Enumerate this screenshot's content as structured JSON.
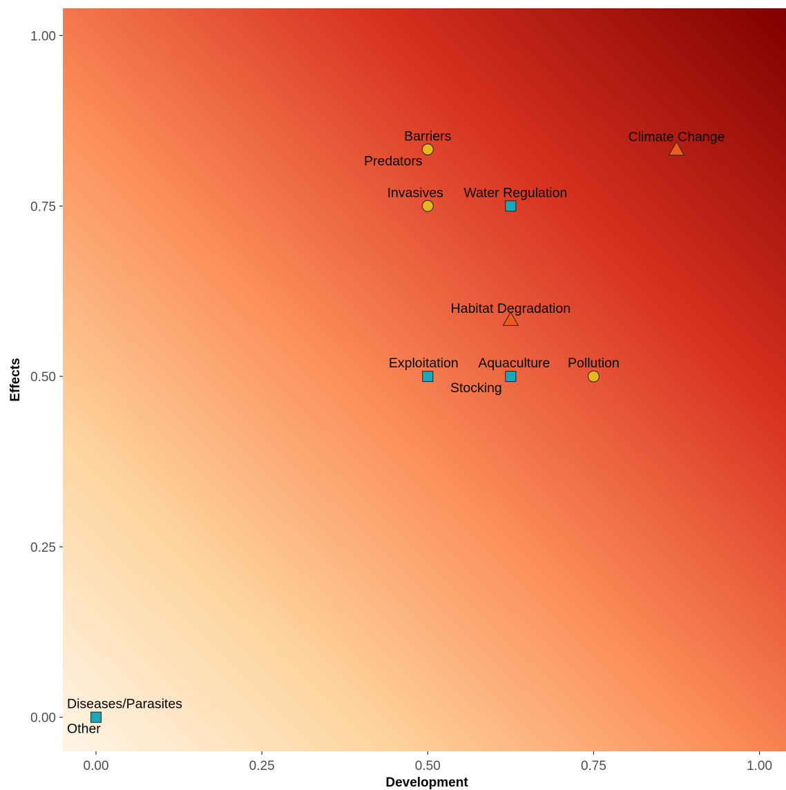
{
  "chart_data": {
    "type": "scatter",
    "title": "",
    "xlabel": "Development",
    "ylabel": "Effects",
    "xlim": [
      -0.05,
      1.04
    ],
    "ylim": [
      -0.05,
      1.04
    ],
    "x_ticks": [
      0,
      0.25,
      0.5,
      0.75,
      1
    ],
    "x_tick_labels": [
      "0.00",
      "0.25",
      "0.50",
      "0.75",
      "1.00"
    ],
    "y_ticks": [
      0,
      0.25,
      0.5,
      0.75,
      1
    ],
    "y_tick_labels": [
      "0.00",
      "0.25",
      "0.50",
      "0.75",
      "1.00"
    ],
    "grid": false,
    "legend": "none",
    "background": "gradient from light cream (low development, low effects) to dark red (high development, high effects)",
    "colors": {
      "gradient_low": "#fff5e6",
      "gradient_mid1": "#fdd49e",
      "gradient_mid2": "#fc8d59",
      "gradient_mid3": "#d7301f",
      "gradient_high": "#7f0000",
      "circle": "#e8b420",
      "square": "#1aa7b8",
      "triangle": "#f05a1a"
    },
    "points": [
      {
        "label": "Barriers",
        "x": 0.5,
        "y": 0.833,
        "shape": "circle"
      },
      {
        "label": "Predators",
        "x": 0.5,
        "y": 0.833,
        "shape": "circle"
      },
      {
        "label": "Climate Change",
        "x": 0.875,
        "y": 0.833,
        "shape": "triangle"
      },
      {
        "label": "Invasives",
        "x": 0.5,
        "y": 0.75,
        "shape": "circle"
      },
      {
        "label": "Water Regulation",
        "x": 0.625,
        "y": 0.75,
        "shape": "square"
      },
      {
        "label": "Habitat Degradation",
        "x": 0.625,
        "y": 0.583,
        "shape": "triangle"
      },
      {
        "label": "Exploitation",
        "x": 0.5,
        "y": 0.5,
        "shape": "square"
      },
      {
        "label": "Aquaculture",
        "x": 0.625,
        "y": 0.5,
        "shape": "square"
      },
      {
        "label": "Stocking",
        "x": 0.625,
        "y": 0.5,
        "shape": "square"
      },
      {
        "label": "Pollution",
        "x": 0.75,
        "y": 0.5,
        "shape": "circle"
      },
      {
        "label": "Diseases/Parasites",
        "x": 0,
        "y": 0,
        "shape": "square"
      },
      {
        "label": "Other",
        "x": 0,
        "y": 0,
        "shape": "square"
      }
    ]
  }
}
